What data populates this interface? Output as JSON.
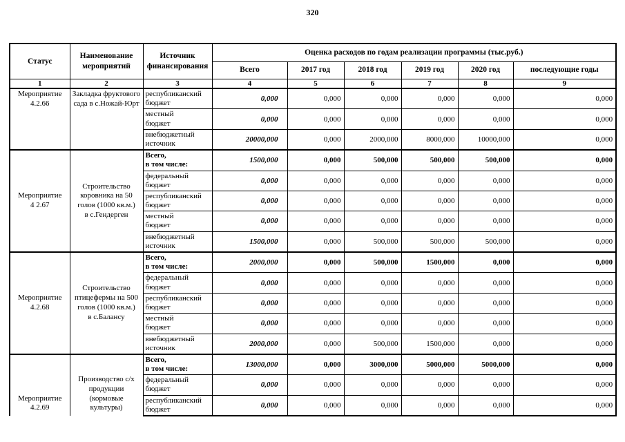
{
  "page": {
    "number": "320"
  },
  "table": {
    "header": {
      "status": "Статус",
      "name": "Наименование\nмероприятий",
      "source": "Источник\nфинансирования",
      "estimate": "Оценка расходов по годам реализации  программы (тыс.руб.)",
      "years": [
        "Всего",
        "2017 год",
        "2018 год",
        "2019 год",
        "2020 год",
        "последующие годы"
      ],
      "numbers": [
        "1",
        "2",
        "3",
        "4",
        "5",
        "6",
        "7",
        "8",
        "9"
      ]
    },
    "blocks": [
      {
        "status": "Мероприятие\n4.2.66",
        "name": "Закладка фруктового\nсада в с.Ножай-Юрт",
        "valign": "top",
        "rows": [
          {
            "source": "республиканский\nбюджет",
            "is_total": false,
            "values": [
              "0,000",
              "0,000",
              "0,000",
              "0,000",
              "0,000",
              "0,000"
            ]
          },
          {
            "source": "местный\nбюджет",
            "is_total": false,
            "values": [
              "0,000",
              "0,000",
              "0,000",
              "0,000",
              "0,000",
              "0,000"
            ]
          },
          {
            "source": "внебюджетный\nисточник",
            "is_total": false,
            "values": [
              "20000,000",
              "0,000",
              "2000,000",
              "8000,000",
              "10000,000",
              "0,000"
            ]
          }
        ]
      },
      {
        "status": "Мероприятие\n4 2.67",
        "name": "Строительство\nкоровника на 50\nголов (1000 кв.м.)\nв с.Гендерген",
        "valign": "middle",
        "rows": [
          {
            "source": "Всего,\nв том числе:",
            "is_total": true,
            "values": [
              "1500,000",
              "0,000",
              "500,000",
              "500,000",
              "500,000",
              "0,000"
            ]
          },
          {
            "source": "федеральный\nбюджет",
            "is_total": false,
            "values": [
              "0,000",
              "0,000",
              "0,000",
              "0,000",
              "0,000",
              "0,000"
            ]
          },
          {
            "source": "республиканский\nбюджет",
            "is_total": false,
            "values": [
              "0,000",
              "0,000",
              "0,000",
              "0,000",
              "0,000",
              "0,000"
            ]
          },
          {
            "source": "местный\nбюджет",
            "is_total": false,
            "values": [
              "0,000",
              "0,000",
              "0,000",
              "0,000",
              "0,000",
              "0,000"
            ]
          },
          {
            "source": "внебюджетный\nисточник",
            "is_total": false,
            "values": [
              "1500,000",
              "0,000",
              "500,000",
              "500,000",
              "500,000",
              "0,000"
            ]
          }
        ]
      },
      {
        "status": "Мероприятие\n4.2.68",
        "name": "Строительство\nптицефермы на 500\nголов  (1000 кв.м.)\nв с.Балансу",
        "valign": "middle",
        "rows": [
          {
            "source": "Всего,\nв том числе:",
            "is_total": true,
            "values": [
              "2000,000",
              "0,000",
              "500,000",
              "1500,000",
              "0,000",
              "0,000"
            ]
          },
          {
            "source": "федеральный\nбюджет",
            "is_total": false,
            "values": [
              "0,000",
              "0,000",
              "0,000",
              "0,000",
              "0,000",
              "0,000"
            ]
          },
          {
            "source": "республиканский\nбюджет",
            "is_total": false,
            "values": [
              "0,000",
              "0,000",
              "0,000",
              "0,000",
              "0,000",
              "0,000"
            ]
          },
          {
            "source": "местный\nбюджет",
            "is_total": false,
            "values": [
              "0,000",
              "0,000",
              "0,000",
              "0,000",
              "0,000",
              "0,000"
            ]
          },
          {
            "source": "внебюджетный\nисточник",
            "is_total": false,
            "values": [
              "2000,000",
              "0,000",
              "500,000",
              "1500,000",
              "0,000",
              "0,000"
            ]
          }
        ]
      },
      {
        "status": "Мероприятие\n4.2.69",
        "name": "Производство с/х\nпродукции (кормовые\nкультуры)",
        "valign": "bottom",
        "cut_off": true,
        "rows": [
          {
            "source": "Всего,\nв том числе:",
            "is_total": true,
            "values": [
              "13000,000",
              "0,000",
              "3000,000",
              "5000,000",
              "5000,000",
              "0,000"
            ]
          },
          {
            "source": "федеральный\nбюджет",
            "is_total": false,
            "values": [
              "0,000",
              "0,000",
              "0,000",
              "0,000",
              "0,000",
              "0,000"
            ]
          },
          {
            "source": "республиканский\nбюджет",
            "is_total": false,
            "values": [
              "0,000",
              "0,000",
              "0,000",
              "0,000",
              "0,000",
              "0,000"
            ]
          }
        ]
      }
    ]
  }
}
